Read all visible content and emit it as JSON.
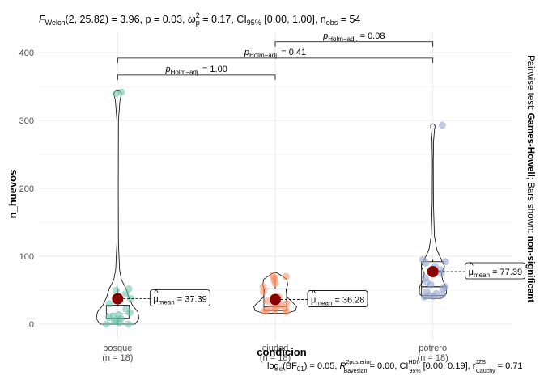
{
  "subtitle": {
    "text_parts": [
      "F",
      "Welch",
      "(2, 25.82) = 3.96, p = 0.03, ",
      "ω",
      "2",
      "p",
      " = 0.17, CI",
      "95%",
      " [0.00, 1.00], n",
      "obs",
      " = 54"
    ]
  },
  "caption": {
    "text_parts": [
      "log",
      "e",
      "(BF",
      "01",
      ") = 0.05, ",
      "R",
      "2",
      "posterior",
      "Bayesian",
      " = 0.00, CI",
      "HDI",
      "95%",
      " [0.00, 0.19], r",
      "JZS",
      "Cauchy",
      " = 0.71"
    ]
  },
  "side_text": {
    "prefix": "Pairwise test: ",
    "method": "Games-Howell",
    "middle": "; Bars shown: ",
    "shown": "non-significant"
  },
  "colors": {
    "bosque": "#66c2a5",
    "ciudad": "#fc8d62",
    "potrero": "#8da0cb",
    "mean": "#8b0000",
    "grid": "#ebebeb"
  },
  "chart_data": {
    "type": "violin-box-scatter",
    "xlabel": "condicion",
    "ylabel": "n_huevos",
    "ylim": [
      -25,
      430
    ],
    "yticks": [
      0,
      100,
      200,
      300,
      400
    ],
    "grid": true,
    "categories": [
      {
        "name": "bosque",
        "n_label": "(n = 18)",
        "mean": 37.39,
        "mean_label_prefix": "μ",
        "mean_label_sub": "mean",
        "mean_label_value": "= 37.39",
        "box": {
          "q1": 8,
          "median": 15,
          "q3": 28,
          "whisker_low": 0,
          "whisker_high": 52
        },
        "points": [
          0,
          0,
          2,
          4,
          6,
          8,
          10,
          12,
          14,
          17,
          22,
          30,
          38,
          45,
          50,
          52,
          340,
          342
        ],
        "violin": [
          [
            0,
            0.45
          ],
          [
            8,
            0.55
          ],
          [
            18,
            0.52
          ],
          [
            28,
            0.38
          ],
          [
            40,
            0.28
          ],
          [
            52,
            0.22
          ],
          [
            65,
            0.1
          ],
          [
            80,
            0.05
          ],
          [
            120,
            0.02
          ],
          [
            200,
            0.015
          ],
          [
            300,
            0.02
          ],
          [
            330,
            0.06
          ],
          [
            340,
            0.1
          ],
          [
            345,
            0.04
          ]
        ]
      },
      {
        "name": "ciudad",
        "n_label": "(n = 18)",
        "mean": 36.28,
        "mean_label_prefix": "μ",
        "mean_label_sub": "mean",
        "mean_label_value": "= 36.28",
        "box": {
          "q1": 20,
          "median": 26,
          "q3": 52,
          "whisker_low": 18,
          "whisker_high": 72
        },
        "points": [
          18,
          19,
          20,
          21,
          22,
          24,
          26,
          28,
          30,
          34,
          40,
          48,
          55,
          60,
          65,
          68,
          70,
          72
        ],
        "violin": [
          [
            16,
            0.3
          ],
          [
            20,
            0.52
          ],
          [
            26,
            0.55
          ],
          [
            32,
            0.45
          ],
          [
            40,
            0.3
          ],
          [
            50,
            0.28
          ],
          [
            58,
            0.32
          ],
          [
            66,
            0.3
          ],
          [
            72,
            0.15
          ],
          [
            76,
            0.03
          ]
        ]
      },
      {
        "name": "potrero",
        "n_label": "(n = 18)",
        "mean": 77.39,
        "mean_label_prefix": "μ",
        "mean_label_sub": "mean",
        "mean_label_value": "= 77.39",
        "box": {
          "q1": 42,
          "median": 55,
          "q3": 92,
          "whisker_low": 40,
          "whisker_high": 95
        },
        "points": [
          40,
          41,
          42,
          43,
          45,
          48,
          52,
          55,
          58,
          62,
          68,
          75,
          80,
          85,
          90,
          92,
          95,
          293
        ],
        "violin": [
          [
            38,
            0.22
          ],
          [
            45,
            0.35
          ],
          [
            55,
            0.34
          ],
          [
            65,
            0.25
          ],
          [
            75,
            0.22
          ],
          [
            85,
            0.3
          ],
          [
            95,
            0.22
          ],
          [
            110,
            0.1
          ],
          [
            130,
            0.04
          ],
          [
            180,
            0.015
          ],
          [
            240,
            0.012
          ],
          [
            270,
            0.02
          ],
          [
            285,
            0.04
          ],
          [
            292,
            0.06
          ],
          [
            295,
            0.02
          ]
        ]
      }
    ],
    "pairwise": [
      {
        "from": "bosque",
        "to": "ciudad",
        "y": 367,
        "label_prefix": "p",
        "label_sub": "Holm−adj.",
        "label_value": "= 1.00"
      },
      {
        "from": "bosque",
        "to": "potrero",
        "y": 392,
        "label_prefix": "p",
        "label_sub": "Holm−adj.",
        "label_value": "= 0.41"
      },
      {
        "from": "ciudad",
        "to": "potrero",
        "y": 416,
        "label_prefix": "p",
        "label_sub": "Holm−adj.",
        "label_value": "= 0.08"
      }
    ]
  }
}
